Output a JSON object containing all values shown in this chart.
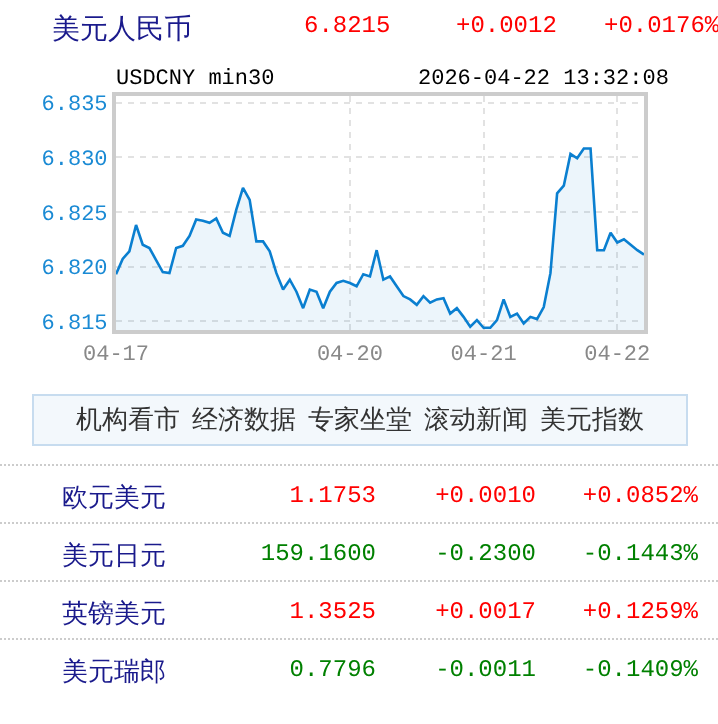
{
  "chart_data": [
    {
      "type": "area",
      "title": "美元人民币",
      "subtitle": "USDCNY min30",
      "annotations": [
        "6.8215",
        "+0.0012",
        "+0.0176%",
        "2026-04-22 13:32:08"
      ],
      "color": "#0a7fd0",
      "categories": [
        "04-17",
        null,
        null,
        null,
        null,
        null,
        null,
        null,
        null,
        null,
        null,
        null,
        null,
        null,
        null,
        null,
        null,
        null,
        null,
        null,
        null,
        null,
        null,
        null,
        null,
        null,
        null,
        null,
        null,
        null,
        null,
        null,
        null,
        null,
        null,
        "04-20",
        null,
        null,
        null,
        null,
        null,
        null,
        null,
        null,
        null,
        null,
        null,
        null,
        null,
        null,
        null,
        null,
        null,
        null,
        null,
        "04-21",
        null,
        null,
        null,
        null,
        null,
        null,
        null,
        null,
        null,
        null,
        null,
        null,
        null,
        null,
        null,
        null,
        null,
        null,
        null,
        "04-22",
        null,
        null,
        null,
        null
      ],
      "values": [
        6.8193,
        6.8207,
        6.8214,
        6.8238,
        6.822,
        6.8217,
        6.8206,
        6.8195,
        6.8194,
        6.8217,
        6.8219,
        6.8228,
        6.8243,
        6.8242,
        6.824,
        6.8244,
        6.8231,
        6.8228,
        6.8252,
        6.8272,
        6.8261,
        6.8223,
        6.8223,
        6.8214,
        6.8194,
        6.8179,
        6.8188,
        6.8177,
        6.8162,
        6.8179,
        6.8177,
        6.8162,
        6.8177,
        6.8185,
        6.8187,
        6.8185,
        6.8182,
        6.8193,
        6.8191,
        6.8215,
        6.8188,
        6.8191,
        6.8182,
        6.8173,
        6.817,
        6.8165,
        6.8173,
        6.8167,
        6.817,
        6.8171,
        6.8157,
        6.8162,
        6.8154,
        6.8145,
        6.8151,
        6.8144,
        6.8144,
        6.8151,
        6.817,
        6.8154,
        6.8157,
        6.8148,
        6.8154,
        6.8152,
        6.8163,
        6.8194,
        6.8267,
        6.8274,
        6.8303,
        6.8299,
        6.8308,
        6.8308,
        6.8215,
        6.8215,
        6.8231,
        6.8222,
        6.8225,
        6.822,
        6.8215,
        6.8211
      ],
      "ylim": [
        6.8142,
        6.8356
      ],
      "yticks": [
        6.815,
        {
          "value": 6.82,
          "label": "6.820"
        },
        6.825,
        {
          "value": 6.83,
          "label": "6.830"
        },
        6.835
      ],
      "grid": true
    },
    {
      "type": "other",
      "annotations": [
        "机构看市",
        "经济数据",
        "专家坐堂",
        "滚动新闻",
        "美元指数"
      ],
      "categories": [
        "欧元美元",
        "美元日元",
        "英镑美元",
        "美元瑞郎"
      ],
      "cell_labels": [
        [
          "1.1753",
          "+0.0010",
          "+0.0852%"
        ],
        [
          "159.1600",
          "-0.2300",
          "-0.1443%"
        ],
        [
          "1.3525",
          "+0.0017",
          "+0.1259%"
        ],
        [
          "0.7796",
          "-0.0011",
          "-0.1409%"
        ]
      ],
      "colors": [
        "#ff0000",
        "#008000",
        "#ff0000",
        "#008000"
      ]
    }
  ]
}
